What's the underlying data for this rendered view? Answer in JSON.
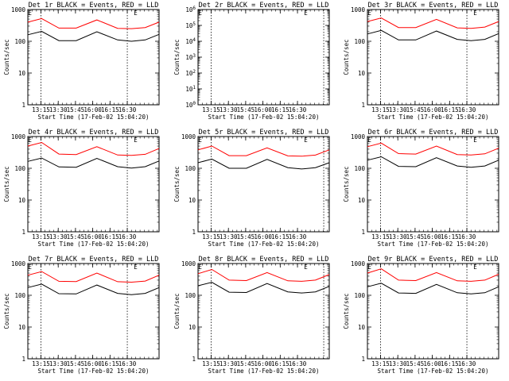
{
  "figure": {
    "background": "#ffffff",
    "series_colors": {
      "Events": "#000000",
      "LLD": "#ff0000"
    },
    "x_tick_labels": [
      "13:15",
      "13:30",
      "15:45",
      "16:00",
      "16:15",
      "16:30"
    ],
    "ylabel": "Counts/sec",
    "xlabel": "Start Time (17-Feb-02 15:04:20)",
    "marker_text": "E"
  },
  "chart_data": [
    {
      "type": "line",
      "title": "Det 1r BLACK = Events, RED = LLD",
      "xlabel": "Start Time (17-Feb-02 15:04:20)",
      "ylabel": "Counts/sec",
      "y_scale": "log",
      "ylim": [
        1,
        1000
      ],
      "y_ticks": [
        "1",
        "10",
        "100",
        "1000"
      ],
      "x_ticks": [
        "13:15",
        "13:30",
        "15:45",
        "16:00",
        "16:15",
        "16:30"
      ],
      "x_range_hours": [
        0,
        1.9
      ],
      "dashed_markers_hours": [
        0.19,
        1.44
      ],
      "E_marks_hours": [
        0.03,
        1.56
      ],
      "series": [
        {
          "name": "Events",
          "color": "#000000",
          "x": [
            0.0,
            0.2,
            0.45,
            0.7,
            1.0,
            1.3,
            1.5,
            1.7,
            1.9
          ],
          "values": [
            160,
            205,
            105,
            105,
            200,
            110,
            100,
            110,
            165
          ]
        },
        {
          "name": "LLD",
          "color": "#ff0000",
          "x": [
            0.0,
            0.2,
            0.45,
            0.7,
            1.0,
            1.3,
            1.5,
            1.7,
            1.9
          ],
          "values": [
            400,
            520,
            260,
            260,
            470,
            255,
            250,
            270,
            400
          ]
        }
      ]
    },
    {
      "type": "line",
      "title": "Det 2r BLACK = Events, RED = LLD",
      "xlabel": "Start Time (17-Feb-02 15:04:20)",
      "ylabel": "Counts/sec",
      "y_scale": "log",
      "ylim": [
        1,
        1000000
      ],
      "y_ticks": [
        "10^0",
        "10^1",
        "10^2",
        "10^3",
        "10^4",
        "10^5",
        "10^6"
      ],
      "x_ticks": [
        "13:15",
        "13:30",
        "15:45",
        "16:00",
        "16:15",
        "16:30"
      ],
      "x_range_hours": [
        0,
        1.9
      ],
      "dashed_markers_hours": [
        0.19,
        1.82
      ],
      "E_marks_hours": [
        0.03,
        1.56
      ],
      "series": []
    },
    {
      "type": "line",
      "title": "Det 3r BLACK = Events, RED = LLD",
      "xlabel": "Start Time (17-Feb-02 15:04:20)",
      "ylabel": "Counts/sec",
      "y_scale": "log",
      "ylim": [
        1,
        1000
      ],
      "y_ticks": [
        "1",
        "10",
        "100",
        "1000"
      ],
      "x_ticks": [
        "13:15",
        "13:30",
        "15:45",
        "16:00",
        "16:15",
        "16:30"
      ],
      "x_range_hours": [
        0,
        1.9
      ],
      "dashed_markers_hours": [
        0.19,
        1.44
      ],
      "E_marks_hours": [
        0.03,
        1.56
      ],
      "series": [
        {
          "name": "Events",
          "color": "#000000",
          "x": [
            0.0,
            0.2,
            0.45,
            0.7,
            1.0,
            1.3,
            1.5,
            1.7,
            1.9
          ],
          "values": [
            170,
            220,
            110,
            110,
            210,
            115,
            105,
            115,
            175
          ]
        },
        {
          "name": "LLD",
          "color": "#ff0000",
          "x": [
            0.0,
            0.2,
            0.45,
            0.7,
            1.0,
            1.3,
            1.5,
            1.7,
            1.9
          ],
          "values": [
            420,
            540,
            270,
            270,
            490,
            265,
            255,
            280,
            420
          ]
        }
      ]
    },
    {
      "type": "line",
      "title": "Det 4r BLACK = Events, RED = LLD",
      "xlabel": "Start Time (17-Feb-02 15:04:20)",
      "ylabel": "Counts/sec",
      "y_scale": "log",
      "ylim": [
        1,
        1000
      ],
      "y_ticks": [
        "1",
        "10",
        "100",
        "1000"
      ],
      "x_ticks": [
        "13:15",
        "13:30",
        "15:45",
        "16:00",
        "16:15",
        "16:30"
      ],
      "x_range_hours": [
        0,
        1.9
      ],
      "dashed_markers_hours": [
        0.19,
        1.44
      ],
      "E_marks_hours": [
        0.03,
        1.56
      ],
      "series": [
        {
          "name": "Events",
          "color": "#000000",
          "x": [
            0.0,
            0.2,
            0.45,
            0.7,
            1.0,
            1.3,
            1.5,
            1.7,
            1.9
          ],
          "values": [
            165,
            210,
            110,
            108,
            205,
            112,
            102,
            112,
            170
          ]
        },
        {
          "name": "LLD",
          "color": "#ff0000",
          "x": [
            0.0,
            0.2,
            0.45,
            0.7,
            1.0,
            1.3,
            1.5,
            1.7,
            1.9
          ],
          "values": [
            500,
            650,
            280,
            270,
            480,
            262,
            255,
            275,
            420
          ]
        }
      ]
    },
    {
      "type": "line",
      "title": "Det 5r BLACK = Events, RED = LLD",
      "xlabel": "Start Time (17-Feb-02 15:04:20)",
      "ylabel": "Counts/sec",
      "y_scale": "log",
      "ylim": [
        1,
        1000
      ],
      "y_ticks": [
        "1",
        "10",
        "100",
        "1000"
      ],
      "x_ticks": [
        "13:15",
        "13:30",
        "15:45",
        "16:00",
        "16:15",
        "16:30"
      ],
      "x_range_hours": [
        0,
        1.9
      ],
      "dashed_markers_hours": [
        0.19,
        1.82
      ],
      "E_marks_hours": [
        0.03,
        1.56
      ],
      "series": [
        {
          "name": "Events",
          "color": "#000000",
          "x": [
            0.0,
            0.2,
            0.45,
            0.7,
            1.0,
            1.3,
            1.5,
            1.7,
            1.9
          ],
          "values": [
            150,
            195,
            100,
            100,
            190,
            105,
            95,
            105,
            150
          ]
        },
        {
          "name": "LLD",
          "color": "#ff0000",
          "x": [
            0.0,
            0.2,
            0.45,
            0.7,
            1.0,
            1.3,
            1.5,
            1.7,
            1.9
          ],
          "values": [
            380,
            500,
            250,
            250,
            440,
            245,
            240,
            260,
            380
          ]
        }
      ]
    },
    {
      "type": "line",
      "title": "Det 6r BLACK = Events, RED = LLD",
      "xlabel": "Start Time (17-Feb-02 15:04:20)",
      "ylabel": "Counts/sec",
      "y_scale": "log",
      "ylim": [
        1,
        1000
      ],
      "y_ticks": [
        "1",
        "10",
        "100",
        "1000"
      ],
      "x_ticks": [
        "13:15",
        "13:30",
        "15:45",
        "16:00",
        "16:15",
        "16:30"
      ],
      "x_range_hours": [
        0,
        1.9
      ],
      "dashed_markers_hours": [
        0.19,
        1.44
      ],
      "E_marks_hours": [
        0.03,
        1.56
      ],
      "series": [
        {
          "name": "Events",
          "color": "#000000",
          "x": [
            0.0,
            0.2,
            0.45,
            0.7,
            1.0,
            1.3,
            1.5,
            1.7,
            1.9
          ],
          "values": [
            180,
            230,
            115,
            112,
            215,
            118,
            108,
            118,
            180
          ]
        },
        {
          "name": "LLD",
          "color": "#ff0000",
          "x": [
            0.0,
            0.2,
            0.45,
            0.7,
            1.0,
            1.3,
            1.5,
            1.7,
            1.9
          ],
          "values": [
            480,
            620,
            290,
            280,
            500,
            270,
            262,
            285,
            430
          ]
        }
      ]
    },
    {
      "type": "line",
      "title": "Det 7r BLACK = Events, RED = LLD",
      "xlabel": "Start Time (17-Feb-02 15:04:20)",
      "ylabel": "Counts/sec",
      "y_scale": "log",
      "ylim": [
        1,
        1000
      ],
      "y_ticks": [
        "1",
        "10",
        "100",
        "1000"
      ],
      "x_ticks": [
        "13:15",
        "13:30",
        "15:45",
        "16:00",
        "16:15",
        "16:30"
      ],
      "x_range_hours": [
        0,
        1.9
      ],
      "dashed_markers_hours": [
        0.19,
        1.44
      ],
      "E_marks_hours": [
        0.03,
        1.56
      ],
      "series": [
        {
          "name": "Events",
          "color": "#000000",
          "x": [
            0.0,
            0.2,
            0.45,
            0.7,
            1.0,
            1.3,
            1.5,
            1.7,
            1.9
          ],
          "values": [
            175,
            225,
            112,
            110,
            210,
            115,
            105,
            115,
            175
          ]
        },
        {
          "name": "LLD",
          "color": "#ff0000",
          "x": [
            0.0,
            0.2,
            0.45,
            0.7,
            1.0,
            1.3,
            1.5,
            1.7,
            1.9
          ],
          "values": [
            430,
            560,
            275,
            270,
            500,
            268,
            258,
            280,
            430
          ]
        }
      ]
    },
    {
      "type": "line",
      "title": "Det 8r BLACK = Events, RED = LLD",
      "xlabel": "Start Time (17-Feb-02 15:04:20)",
      "ylabel": "Counts/sec",
      "y_scale": "log",
      "ylim": [
        1,
        1000
      ],
      "y_ticks": [
        "1",
        "10",
        "100",
        "1000"
      ],
      "x_ticks": [
        "13:15",
        "13:30",
        "15:45",
        "16:00",
        "16:15",
        "16:30"
      ],
      "x_range_hours": [
        0,
        1.9
      ],
      "dashed_markers_hours": [
        0.19,
        1.82
      ],
      "E_marks_hours": [
        0.03,
        1.56
      ],
      "series": [
        {
          "name": "Events",
          "color": "#000000",
          "x": [
            0.0,
            0.2,
            0.45,
            0.7,
            1.0,
            1.3,
            1.5,
            1.7,
            1.9
          ],
          "values": [
            200,
            255,
            125,
            122,
            235,
            128,
            118,
            128,
            190
          ]
        },
        {
          "name": "LLD",
          "color": "#ff0000",
          "x": [
            0.0,
            0.2,
            0.45,
            0.7,
            1.0,
            1.3,
            1.5,
            1.7,
            1.9
          ],
          "values": [
            480,
            650,
            300,
            290,
            520,
            285,
            275,
            300,
            450
          ]
        }
      ]
    },
    {
      "type": "line",
      "title": "Det 9r BLACK = Events, RED = LLD",
      "xlabel": "Start Time (17-Feb-02 15:04:20)",
      "ylabel": "Counts/sec",
      "y_scale": "log",
      "ylim": [
        1,
        1000
      ],
      "y_ticks": [
        "1",
        "10",
        "100",
        "1000"
      ],
      "x_ticks": [
        "13:15",
        "13:30",
        "15:45",
        "16:00",
        "16:15",
        "16:30"
      ],
      "x_range_hours": [
        0,
        1.9
      ],
      "dashed_markers_hours": [
        0.19,
        1.44
      ],
      "E_marks_hours": [
        0.03,
        1.56
      ],
      "series": [
        {
          "name": "Events",
          "color": "#000000",
          "x": [
            0.0,
            0.2,
            0.45,
            0.7,
            1.0,
            1.3,
            1.5,
            1.7,
            1.9
          ],
          "values": [
            185,
            240,
            118,
            115,
            220,
            120,
            110,
            120,
            185
          ]
        },
        {
          "name": "LLD",
          "color": "#ff0000",
          "x": [
            0.0,
            0.2,
            0.45,
            0.7,
            1.0,
            1.3,
            1.5,
            1.7,
            1.9
          ],
          "values": [
            500,
            680,
            300,
            290,
            520,
            285,
            275,
            300,
            460
          ]
        }
      ]
    }
  ]
}
